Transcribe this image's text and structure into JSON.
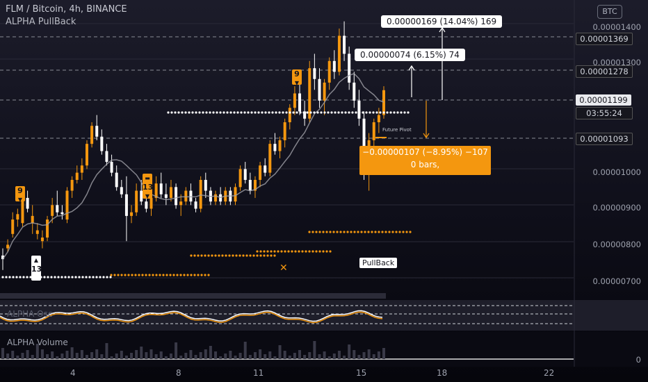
{
  "header": {
    "symbol_line": "FLM / Bitcoin, 4h, BINANCE",
    "indicator": "ALPHA PullBack",
    "currency_badge": "BTC"
  },
  "price_axis": {
    "ticks": [
      "0.00001400",
      "0.00001300",
      "0.00001000",
      "0.00000900",
      "0.00000800",
      "0.00000700"
    ],
    "highlight_last": "0.00001199",
    "highlight_1369": "0.00001369",
    "highlight_1278": "0.00001278",
    "highlight_1093": "0.00001093",
    "countdown": "03:55:24"
  },
  "time_axis": {
    "labels": [
      "4",
      "8",
      "11",
      "15",
      "18",
      "22"
    ]
  },
  "annotations": {
    "measure_up_far": "0.00000169 (14.04%) 169",
    "measure_up_near": "0.00000074 (6.15%) 74",
    "measure_down_line1": "−0.00000107 (−8.95%) −107",
    "measure_down_line2": "0 bars,",
    "pullback_label": "PullBack",
    "future_pivot": "Future Pivot",
    "seq_9_left": "9",
    "seq_13_left": "13",
    "seq_13_mid": "13",
    "seq_9_right": "9"
  },
  "panes": {
    "oscillator_title": "ALPHA Osc",
    "volume_title": "ALPHA Volume",
    "volume_zero": "0"
  },
  "colors": {
    "bull": "#f4970f",
    "bear": "#ffffff",
    "ma": "#a0a0a8",
    "accent": "#f4970f"
  },
  "chart_data": {
    "type": "candlestick",
    "symbol": "FLM / Bitcoin",
    "interval": "4h",
    "y_range": [
      6.3e-06,
      1.43e-05
    ],
    "candles": [
      [
        7.4e-06,
        7.6e-06,
        7e-06,
        7.3e-06
      ],
      [
        7.6e-06,
        7.85e-06,
        7.5e-06,
        7.7e-06
      ],
      [
        8e-06,
        8.6e-06,
        7.9e-06,
        8.4e-06
      ],
      [
        8.4e-06,
        8.7e-06,
        8.2e-06,
        8.55e-06
      ],
      [
        8.3e-06,
        9.1e-06,
        8.2e-06,
        9e-06
      ],
      [
        9e-06,
        9.2e-06,
        8.6e-06,
        8.7e-06
      ],
      [
        8.3e-06,
        8.8e-06,
        8e-06,
        8.5e-06
      ],
      [
        8e-06,
        8.3e-06,
        7.85e-06,
        8.1e-06
      ],
      [
        7.8e-06,
        8.1e-06,
        7.6e-06,
        7.9e-06
      ],
      [
        7.9e-06,
        8.5e-06,
        7.8e-06,
        8.4e-06
      ],
      [
        8.5e-06,
        9e-06,
        8.3e-06,
        8.8e-06
      ],
      [
        8.8e-06,
        9.2e-06,
        8.5e-06,
        8.6e-06
      ],
      [
        8.6e-06,
        8.8e-06,
        8.4e-06,
        8.55e-06
      ],
      [
        8.4e-06,
        9.3e-06,
        8.3e-06,
        9.2e-06
      ],
      [
        9.2e-06,
        9.6e-06,
        9e-06,
        9.5e-06
      ],
      [
        9.5e-06,
        9.9e-06,
        9.4e-06,
        9.7e-06
      ],
      [
        9.7e-06,
        1.01e-05,
        9.5e-06,
        9.9e-06
      ],
      [
        9.9e-06,
        1.06e-05,
        9.8e-06,
        1.05e-05
      ],
      [
        1.05e-05,
        1.11e-05,
        1.04e-05,
        1.1e-05
      ],
      [
        1.1e-05,
        1.13e-05,
        1.06e-05,
        1.07e-05
      ],
      [
        1.07e-05,
        1.09e-05,
        1.02e-05,
        1.03e-05
      ],
      [
        1.03e-05,
        1.05e-05,
        9.9e-06,
        1e-05
      ],
      [
        1e-05,
        1.02e-05,
        9.6e-06,
        9.7e-06
      ],
      [
        9.7e-06,
        9.9e-06,
        9.2e-06,
        9.3e-06
      ],
      [
        9.3e-06,
        9.5e-06,
        9e-06,
        9.1e-06
      ],
      [
        9.1e-06,
        9.6e-06,
        7.8e-06,
        8.5e-06
      ],
      [
        8.5e-06,
        8.8e-06,
        8.3e-06,
        8.6e-06
      ],
      [
        8.6e-06,
        9.4e-06,
        8.5e-06,
        9.2e-06
      ],
      [
        9.2e-06,
        9.5e-06,
        8.8e-06,
        8.9e-06
      ],
      [
        8.9e-06,
        9.2e-06,
        8.6e-06,
        8.7e-06
      ],
      [
        8.7e-06,
        9.2e-06,
        8.5e-06,
        9e-06
      ],
      [
        9e-06,
        9.6e-06,
        8.9e-06,
        9.4e-06
      ],
      [
        9.4e-06,
        9.7e-06,
        9e-06,
        9.1e-06
      ],
      [
        9.1e-06,
        9.4e-06,
        8.8e-06,
        9e-06
      ],
      [
        9e-06,
        9.5e-06,
        8.9e-06,
        9.3e-06
      ],
      [
        9.3e-06,
        9.4e-06,
        8.7e-06,
        8.8e-06
      ],
      [
        8.8e-06,
        9.1e-06,
        8.5e-06,
        8.9e-06
      ],
      [
        8.9e-06,
        9.3e-06,
        8.8e-06,
        9.2e-06
      ],
      [
        9.2e-06,
        9.4e-06,
        8.8e-06,
        8.9e-06
      ],
      [
        8.9e-06,
        9e-06,
        8.6e-06,
        8.7e-06
      ],
      [
        8.7e-06,
        9.6e-06,
        8.6e-06,
        9.5e-06
      ],
      [
        9.5e-06,
        9.7e-06,
        9e-06,
        9.2e-06
      ],
      [
        9.2e-06,
        9.3e-06,
        8.8e-06,
        8.9e-06
      ],
      [
        8.9e-06,
        9.2e-06,
        8.8e-06,
        9.1e-06
      ],
      [
        9.1e-06,
        9.3e-06,
        8.8e-06,
        8.9e-06
      ],
      [
        8.9e-06,
        9.3e-06,
        8.8e-06,
        9.2e-06
      ],
      [
        9.2e-06,
        9.3e-06,
        8.8e-06,
        8.9e-06
      ],
      [
        8.9e-06,
        9.4e-06,
        8.8e-06,
        9.3e-06
      ],
      [
        9.3e-06,
        9.9e-06,
        9.2e-06,
        9.8e-06
      ],
      [
        9.8e-06,
        1e-05,
        9.4e-06,
        9.5e-06
      ],
      [
        9.5e-06,
        9.7e-06,
        9.1e-06,
        9.2e-06
      ],
      [
        9.2e-06,
        9.6e-06,
        9e-06,
        9.5e-06
      ],
      [
        9.5e-06,
        1e-05,
        9.3e-06,
        9.9e-06
      ],
      [
        9.9e-06,
        1.01e-05,
        9.6e-06,
        9.7e-06
      ],
      [
        9.7e-06,
        1.06e-05,
        9.6e-06,
        1.05e-05
      ],
      [
        1.05e-05,
        1.08e-05,
        1.02e-05,
        1.03e-05
      ],
      [
        1.03e-05,
        1.07e-05,
        1.01e-05,
        1.06e-05
      ],
      [
        1.06e-05,
        1.12e-05,
        1.04e-05,
        1.11e-05
      ],
      [
        1.11e-05,
        1.16e-05,
        1.09e-05,
        1.15e-05
      ],
      [
        1.15e-05,
        1.21e-05,
        1.13e-05,
        1.19e-05
      ],
      [
        1.19e-05,
        1.22e-05,
        1.13e-05,
        1.14e-05
      ],
      [
        1.14e-05,
        1.17e-05,
        1.1e-05,
        1.12e-05
      ],
      [
        1.12e-05,
        1.28e-05,
        1.11e-05,
        1.26e-05
      ],
      [
        1.26e-05,
        1.3e-05,
        1.2e-05,
        1.23e-05
      ],
      [
        1.23e-05,
        1.26e-05,
        1.15e-05,
        1.17e-05
      ],
      [
        1.17e-05,
        1.23e-05,
        1.13e-05,
        1.22e-05
      ],
      [
        1.22e-05,
        1.29e-05,
        1.2e-05,
        1.28e-05
      ],
      [
        1.28e-05,
        1.31e-05,
        1.23e-05,
        1.25e-05
      ],
      [
        1.25e-05,
        1.37e-05,
        1.24e-05,
        1.35e-05
      ],
      [
        1.35e-05,
        1.39e-05,
        1.28e-05,
        1.3e-05
      ],
      [
        1.3e-05,
        1.32e-05,
        1.2e-05,
        1.22e-05
      ],
      [
        1.22e-05,
        1.25e-05,
        1.15e-05,
        1.17e-05
      ],
      [
        1.17e-05,
        1.2e-05,
        1.1e-05,
        1.12e-05
      ],
      [
        1.12e-05,
        1.14e-05,
        9.5e-06,
        1e-05
      ],
      [
        1e-05,
        1.08e-05,
        9.2e-06,
        1.06e-05
      ],
      [
        1.06e-05,
        1.12e-05,
        1.04e-05,
        1.11e-05
      ],
      [
        1.11e-05,
        1.15e-05,
        1.08e-05,
        1.13e-05
      ],
      [
        1.13e-05,
        1.21e-05,
        1.12e-05,
        1.199e-05
      ]
    ]
  }
}
